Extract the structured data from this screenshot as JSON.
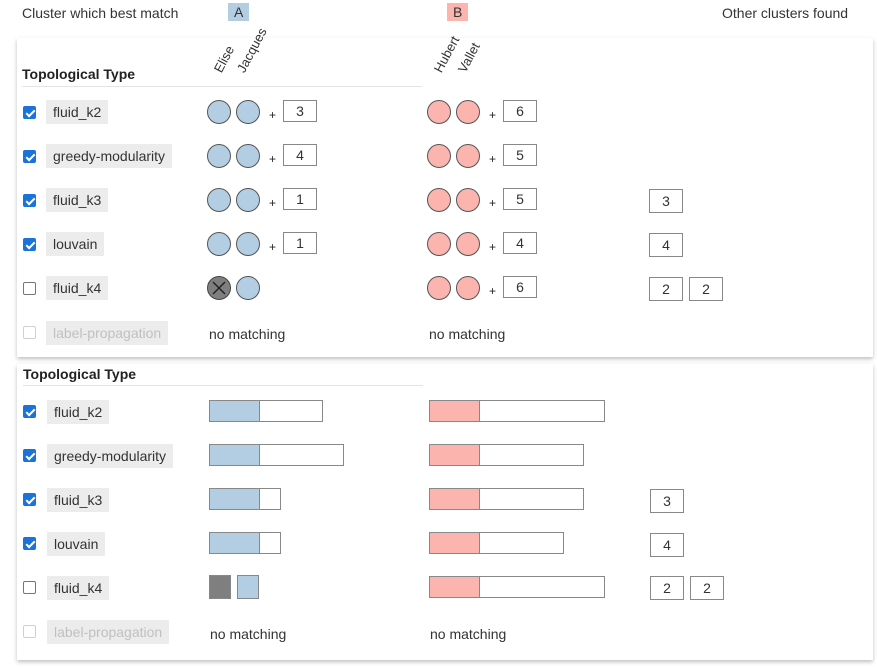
{
  "header": {
    "best_match_label": "Cluster which best match",
    "cluster_a": "A",
    "cluster_b": "B",
    "other_label": "Other clusters found",
    "colors": {
      "a": "#b3cde3",
      "b": "#fbb4ae"
    }
  },
  "names_a": [
    "Elise",
    "Jacques"
  ],
  "names_b": [
    "Hubert",
    "Vallet"
  ],
  "panel_top": {
    "title": "Topological Type",
    "rows": [
      {
        "algo": "fluid_k2",
        "checked": true,
        "disabled": false,
        "a_plus": "3",
        "b_plus": "6",
        "others": []
      },
      {
        "algo": "greedy-modularity",
        "checked": true,
        "disabled": false,
        "a_plus": "4",
        "b_plus": "5",
        "others": []
      },
      {
        "algo": "fluid_k3",
        "checked": true,
        "disabled": false,
        "a_plus": "1",
        "b_plus": "5",
        "others": [
          "3"
        ]
      },
      {
        "algo": "louvain",
        "checked": true,
        "disabled": false,
        "a_plus": "1",
        "b_plus": "4",
        "others": [
          "4"
        ]
      },
      {
        "algo": "fluid_k4",
        "checked": false,
        "disabled": false,
        "a_plus": "",
        "b_plus": "6",
        "others": [
          "2",
          "2"
        ]
      },
      {
        "algo": "label-propagation",
        "checked": false,
        "disabled": true,
        "a_text": "no matching",
        "b_text": "no matching",
        "others": []
      }
    ]
  },
  "panel_bottom": {
    "title": "Topological Type",
    "rows": [
      {
        "algo": "fluid_k2",
        "checked": true,
        "disabled": false,
        "a_fill": 0.44,
        "b_fill": 0.28,
        "others": []
      },
      {
        "algo": "greedy-modularity",
        "checked": true,
        "disabled": false,
        "a_fill": 0.37,
        "b_fill": 0.32,
        "others": []
      },
      {
        "algo": "fluid_k3",
        "checked": true,
        "disabled": false,
        "a_fill": 0.7,
        "b_fill": 0.32,
        "others": [
          "3"
        ]
      },
      {
        "algo": "louvain",
        "checked": true,
        "disabled": false,
        "a_fill": 0.7,
        "b_fill": 0.37,
        "others": [
          "4"
        ]
      },
      {
        "algo": "fluid_k4",
        "checked": false,
        "disabled": false,
        "b_fill": 0.28,
        "others": [
          "2",
          "2"
        ]
      },
      {
        "algo": "label-propagation",
        "checked": false,
        "disabled": true,
        "a_text": "no matching",
        "b_text": "no matching",
        "others": []
      }
    ]
  }
}
